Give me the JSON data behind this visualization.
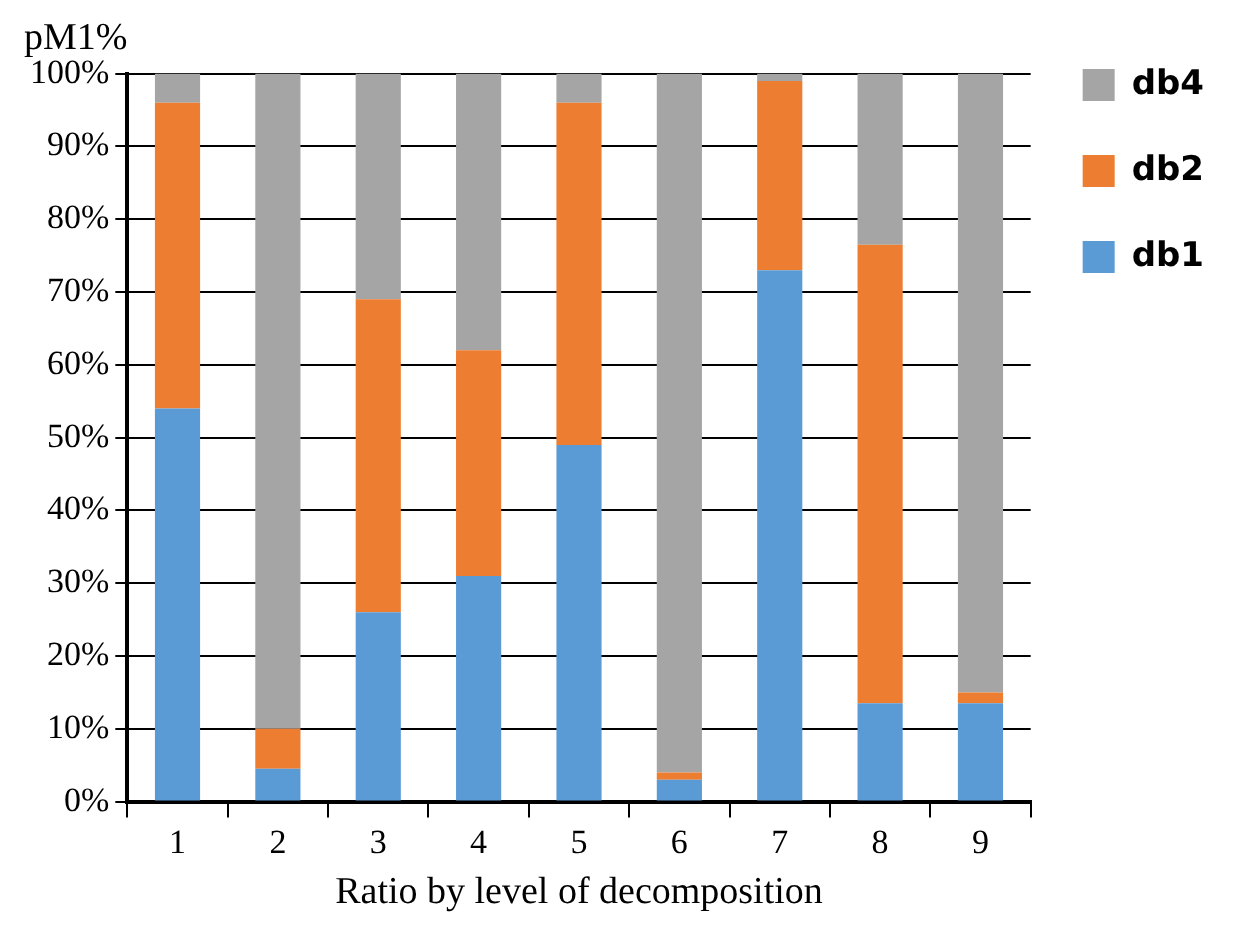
{
  "chart_data": {
    "type": "bar",
    "title": "pM1%",
    "xlabel": "Ratio by level of decomposition",
    "categories": [
      "1",
      "2",
      "3",
      "4",
      "5",
      "6",
      "7",
      "8",
      "9"
    ],
    "series": [
      {
        "name": "db1",
        "color": "#5b9bd5",
        "values": [
          54,
          4.5,
          26,
          31,
          49,
          3,
          73,
          13.5,
          13.5
        ]
      },
      {
        "name": "db2",
        "color": "#ed7d31",
        "values": [
          42,
          5.5,
          43,
          31,
          47,
          1,
          26,
          63,
          1.5
        ]
      },
      {
        "name": "db4",
        "color": "#a5a5a5",
        "values": [
          4,
          90,
          31,
          38,
          4,
          96,
          1,
          23.5,
          85
        ]
      }
    ],
    "stacked": true,
    "ylim": [
      0,
      100
    ],
    "yticks": [
      {
        "value": 0,
        "label": "0%"
      },
      {
        "value": 10,
        "label": "10%"
      },
      {
        "value": 20,
        "label": "20%"
      },
      {
        "value": 30,
        "label": "30%"
      },
      {
        "value": 40,
        "label": "40%"
      },
      {
        "value": 50,
        "label": "50%"
      },
      {
        "value": 60,
        "label": "60%"
      },
      {
        "value": 70,
        "label": "70%"
      },
      {
        "value": 80,
        "label": "80%"
      },
      {
        "value": 90,
        "label": "90%"
      },
      {
        "value": 100,
        "label": "100%"
      }
    ],
    "grid": "y",
    "legend": "right"
  }
}
